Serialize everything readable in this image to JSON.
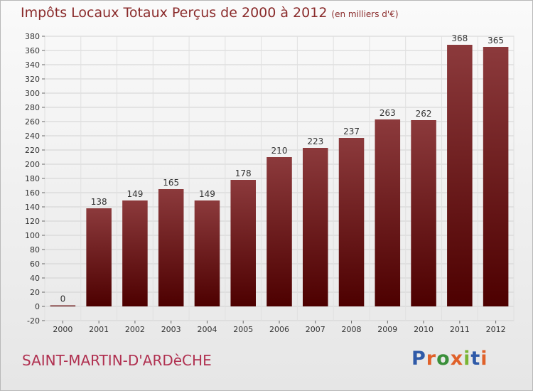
{
  "title": "Impôts Locaux Totaux Perçus de 2000 à 2012",
  "unit_note": "(en milliers d'€)",
  "commune": "SAINT-MARTIN-D'ARDèCHE",
  "brand": {
    "text": "Proxiti",
    "letter_colors": [
      "#2f5aa8",
      "#e0612a",
      "#3a8f3a",
      "#e0612a",
      "#7ab534",
      "#2f5aa8",
      "#e0612a"
    ]
  },
  "colors": {
    "bar_top": "#8c3a3c",
    "bar_bottom": "#4d0000",
    "title": "#8a2b2b",
    "commune": "#b03050"
  },
  "chart_data": {
    "type": "bar",
    "categories": [
      "2000",
      "2001",
      "2002",
      "2003",
      "2004",
      "2005",
      "2006",
      "2007",
      "2008",
      "2009",
      "2010",
      "2011",
      "2012"
    ],
    "values": [
      0,
      138,
      149,
      165,
      149,
      178,
      210,
      223,
      237,
      263,
      262,
      368,
      365
    ],
    "data_labels": [
      "0",
      "138",
      "149",
      "165",
      "149",
      "178",
      "210",
      "223",
      "237",
      "263",
      "262",
      "368",
      "365"
    ],
    "ylim": [
      -20,
      380
    ],
    "ytick_step": 20,
    "grid": true,
    "legend": "none"
  }
}
